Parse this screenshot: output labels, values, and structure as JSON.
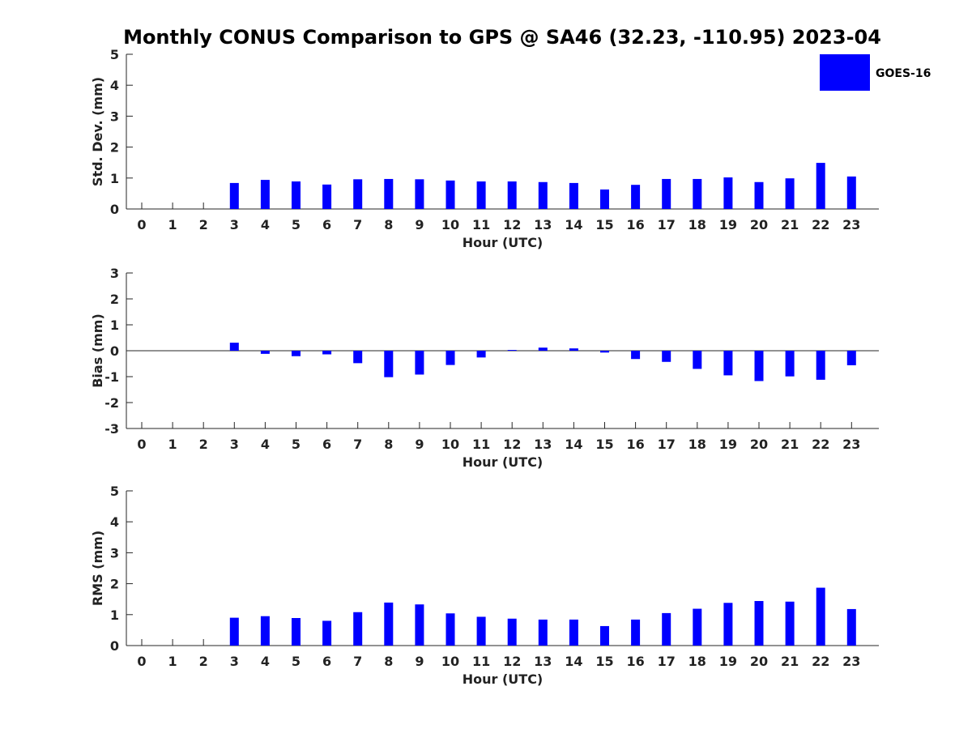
{
  "title": "Monthly CONUS Comparison to GPS @ SA46 (32.23, -110.95) 2023-04",
  "legend": {
    "label": "GOES-16",
    "placement": "top-right",
    "color": "#0000ff"
  },
  "chart_data": [
    {
      "type": "bar",
      "ylabel": "Std. Dev. (mm)",
      "xlabel": "Hour (UTC)",
      "ylim": [
        0,
        5
      ],
      "yticks": [
        0,
        1,
        2,
        3,
        4,
        5
      ],
      "categories": [
        "0",
        "1",
        "2",
        "3",
        "4",
        "5",
        "6",
        "7",
        "8",
        "9",
        "10",
        "11",
        "12",
        "13",
        "14",
        "15",
        "16",
        "17",
        "18",
        "19",
        "20",
        "21",
        "22",
        "23"
      ],
      "series": [
        {
          "name": "GOES-16",
          "color": "#0000ff",
          "values": [
            null,
            null,
            null,
            0.84,
            0.94,
            0.89,
            0.79,
            0.96,
            0.97,
            0.96,
            0.92,
            0.89,
            0.89,
            0.87,
            0.84,
            0.63,
            0.78,
            0.97,
            0.97,
            1.02,
            0.87,
            0.99,
            1.49,
            1.05
          ]
        }
      ]
    },
    {
      "type": "bar",
      "ylabel": "Bias (mm)",
      "xlabel": "Hour (UTC)",
      "ylim": [
        -3,
        3
      ],
      "yticks": [
        -3,
        -2,
        -1,
        0,
        1,
        2,
        3
      ],
      "categories": [
        "0",
        "1",
        "2",
        "3",
        "4",
        "5",
        "6",
        "7",
        "8",
        "9",
        "10",
        "11",
        "12",
        "13",
        "14",
        "15",
        "16",
        "17",
        "18",
        "19",
        "20",
        "21",
        "22",
        "23"
      ],
      "series": [
        {
          "name": "GOES-16",
          "color": "#0000ff",
          "values": [
            null,
            null,
            null,
            0.31,
            -0.12,
            -0.21,
            -0.14,
            -0.48,
            -1.02,
            -0.92,
            -0.55,
            -0.26,
            0.03,
            0.12,
            0.09,
            -0.07,
            -0.32,
            -0.43,
            -0.7,
            -0.95,
            -1.17,
            -0.99,
            -1.12,
            -0.56
          ]
        }
      ]
    },
    {
      "type": "bar",
      "ylabel": "RMS (mm)",
      "xlabel": "Hour (UTC)",
      "ylim": [
        0,
        5
      ],
      "yticks": [
        0,
        1,
        2,
        3,
        4,
        5
      ],
      "categories": [
        "0",
        "1",
        "2",
        "3",
        "4",
        "5",
        "6",
        "7",
        "8",
        "9",
        "10",
        "11",
        "12",
        "13",
        "14",
        "15",
        "16",
        "17",
        "18",
        "19",
        "20",
        "21",
        "22",
        "23"
      ],
      "series": [
        {
          "name": "GOES-16",
          "color": "#0000ff",
          "values": [
            null,
            null,
            null,
            0.9,
            0.95,
            0.89,
            0.8,
            1.08,
            1.39,
            1.33,
            1.04,
            0.93,
            0.87,
            0.84,
            0.84,
            0.63,
            0.84,
            1.05,
            1.19,
            1.38,
            1.44,
            1.42,
            1.87,
            1.18
          ]
        }
      ]
    }
  ]
}
